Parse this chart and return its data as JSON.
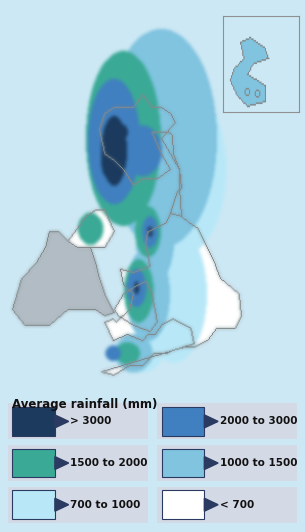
{
  "title": "Average rainfall (mm)",
  "background_color": "#cce8f4",
  "ireland_color": "#b2bcc4",
  "legend_bg": "#d4d9e6",
  "legend_items": [
    {
      "label": "> 3000",
      "color": "#1b3a5e",
      "col": 0,
      "row": 0
    },
    {
      "label": "2000 to 3000",
      "color": "#4080c0",
      "col": 1,
      "row": 0
    },
    {
      "label": "1500 to 2000",
      "color": "#3aaa96",
      "col": 0,
      "row": 1
    },
    {
      "label": "1000 to 1500",
      "color": "#80c4e0",
      "col": 1,
      "row": 1
    },
    {
      "label": "700 to 1000",
      "color": "#b8e8f8",
      "col": 0,
      "row": 2
    },
    {
      "label": "< 700",
      "color": "#ffffff",
      "col": 1,
      "row": 2
    }
  ],
  "legend_border_color": "#2a3a60",
  "figsize": [
    3.05,
    5.32
  ],
  "dpi": 100
}
